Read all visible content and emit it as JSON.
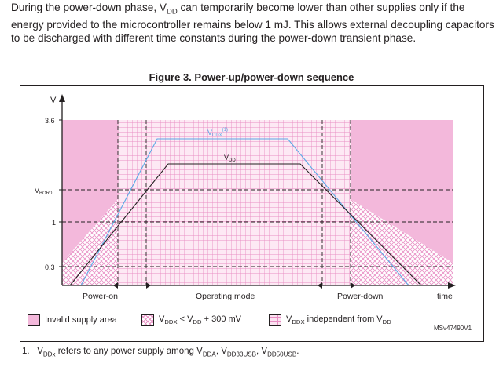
{
  "paragraph": {
    "lines": [
      "During the power-down phase, V",
      "DD",
      " can temporarily become lower than other supplies only if the energy provided to the microcontroller remains below 1 mJ. This allows external decoupling capacitors to be discharged with different time constants during the power-down transient phase."
    ]
  },
  "figure": {
    "title": "Figure 3. Power-up/power-down sequence",
    "y_axis_label": "V",
    "x_axis_label": "time",
    "y_ticks": {
      "v36": "3.6",
      "vboro_main": "V",
      "vboro_sub": "BOR0",
      "v1": "1",
      "v03": "0.3"
    },
    "phases": [
      "Power-on",
      "Operating mode",
      "Power-down"
    ],
    "curve_labels": {
      "vddx_main": "V",
      "vddx_sub": "DDX",
      "vddx_sup": "(1)",
      "vdd_main": "V",
      "vdd_sub": "DD"
    },
    "colors": {
      "invalid": "#f3b8db",
      "hatch": "#e98ec4",
      "vddx_line": "#5aa9e6",
      "vdd_line": "#231f20",
      "vddx_label": "#5aa9e6"
    },
    "legend": {
      "invalid": "Invalid supply area",
      "hatch_a": "V",
      "hatch_a_sub": "DDX",
      "hatch_b": " < V",
      "hatch_b_sub": "DD",
      "hatch_c": " + 300 mV",
      "grid_a": "V",
      "grid_a_sub": "DDX",
      "grid_b": " independent from V",
      "grid_b_sub": "DD"
    },
    "reference": "MSv47490V1"
  },
  "footnote": {
    "number": "1.",
    "t1": "V",
    "t1_sub": "DDx",
    "t2": " refers to any power supply among V",
    "t2_sub": "DDA",
    "t3": ", V",
    "t3_sub": "DD33USB",
    "t4": ", V",
    "t4_sub": "DD50USB",
    "t5": "."
  }
}
